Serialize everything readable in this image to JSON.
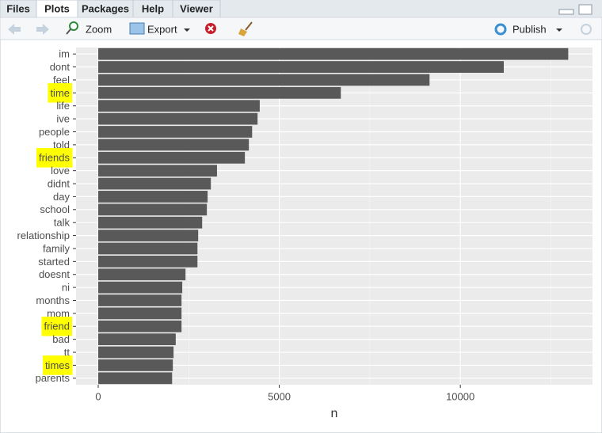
{
  "tabs": [
    "Files",
    "Plots",
    "Packages",
    "Help",
    "Viewer"
  ],
  "toolbar": {
    "zoom": "Zoom",
    "export": "Export",
    "publish": "Publish"
  },
  "chart_data": {
    "type": "bar",
    "orientation": "horizontal",
    "x_label": "n",
    "categories": [
      "im",
      "dont",
      "feel",
      "time",
      "life",
      "ive",
      "people",
      "told",
      "friends",
      "love",
      "didnt",
      "day",
      "school",
      "talk",
      "relationship",
      "family",
      "started",
      "doesnt",
      "ni",
      "months",
      "mom",
      "friend",
      "bad",
      "tt",
      "times",
      "parents"
    ],
    "values": [
      12980,
      11200,
      9150,
      6700,
      4460,
      4400,
      4250,
      4160,
      4050,
      3280,
      3110,
      3020,
      3000,
      2870,
      2760,
      2740,
      2740,
      2410,
      2320,
      2300,
      2300,
      2300,
      2140,
      2080,
      2060,
      2040
    ],
    "color": "#595959",
    "highlight_indices": [
      3,
      8,
      21,
      24
    ],
    "highlight_color": "#ffff00",
    "xlim": [
      -613,
      13650
    ],
    "xticks": [
      0,
      5000,
      10000
    ],
    "grid": true
  }
}
